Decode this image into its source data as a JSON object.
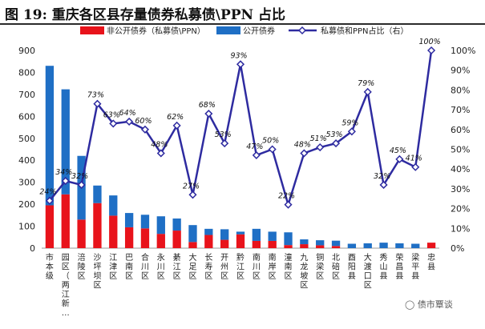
{
  "title": "图 19:  重庆各区县存量债券私募债\\PPN 占比",
  "watermark": "债市覃谈",
  "chart_data": {
    "type": "bar+line",
    "stacked": true,
    "categories": [
      "市本级",
      "两江新区",
      "涪陵区",
      "沙坪坝区",
      "江津区",
      "巴南区",
      "合川区",
      "永川区",
      "綦江区",
      "大足区",
      "长寿区",
      "开州区",
      "黔江区",
      "南川区",
      "南岸区",
      "潼南区",
      "九龙坡区",
      "铜梁区",
      "北碚区",
      "酉阳县",
      "大渡口区",
      "秀山县",
      "荣昌县",
      "梁平县",
      "忠县"
    ],
    "category_labels": [
      "市本级",
      "园区（两江新…",
      "涪陵区",
      "沙坪坝区",
      "江津区",
      "巴南区",
      "合川区",
      "永川区",
      "綦江区",
      "大足区",
      "长寿区",
      "开州区",
      "黔江区",
      "南川区",
      "南岸区",
      "潼南区",
      "九龙坡区",
      "铜梁区",
      "北碚区",
      "酉阳县",
      "大渡口区",
      "秀山县",
      "荣昌县",
      "梁平县",
      "忠县"
    ],
    "series": [
      {
        "name": "非公开债券（私募债\\PPN）",
        "type": "bar",
        "axis": "left",
        "color": "#e8131b",
        "values": [
          195,
          245,
          130,
          205,
          148,
          95,
          90,
          65,
          80,
          28,
          60,
          38,
          63,
          33,
          33,
          14,
          18,
          13,
          10,
          0,
          0,
          0,
          0,
          0,
          25
        ]
      },
      {
        "name": "公开债券",
        "type": "bar",
        "axis": "left",
        "color": "#1f6fc5",
        "values": [
          635,
          478,
          290,
          80,
          92,
          65,
          62,
          80,
          55,
          77,
          28,
          48,
          12,
          55,
          42,
          58,
          22,
          23,
          24,
          20,
          22,
          25,
          22,
          20,
          0
        ]
      },
      {
        "name": "私募债和PPN占比（右）",
        "type": "line",
        "axis": "right",
        "color": "#2e2ba0",
        "values": [
          24,
          34,
          32,
          73,
          63,
          64,
          60,
          48,
          62,
          27,
          68,
          53,
          93,
          47,
          50,
          22,
          48,
          51,
          53,
          59,
          79,
          32,
          45,
          41,
          100
        ],
        "labels": [
          "24%",
          "34%",
          "32%",
          "73%",
          "63%",
          "64%",
          "60%",
          "48%",
          "62%",
          "27%",
          "68%",
          "53%",
          "93%",
          "47%",
          "50%",
          "22%",
          "48%",
          "51%",
          "53%",
          "59%",
          "79%",
          "32%",
          "45%",
          "41%",
          "100%"
        ]
      }
    ],
    "ylim_left": [
      0,
      900
    ],
    "yticks_left": [
      "0",
      "100",
      "200",
      "300",
      "400",
      "500",
      "600",
      "700",
      "800",
      "900"
    ],
    "ylim_right": [
      0,
      100
    ],
    "yticks_right": [
      "0%",
      "10%",
      "20%",
      "30%",
      "40%",
      "50%",
      "60%",
      "70%",
      "80%",
      "90%",
      "100%"
    ],
    "legend_position": "top"
  }
}
